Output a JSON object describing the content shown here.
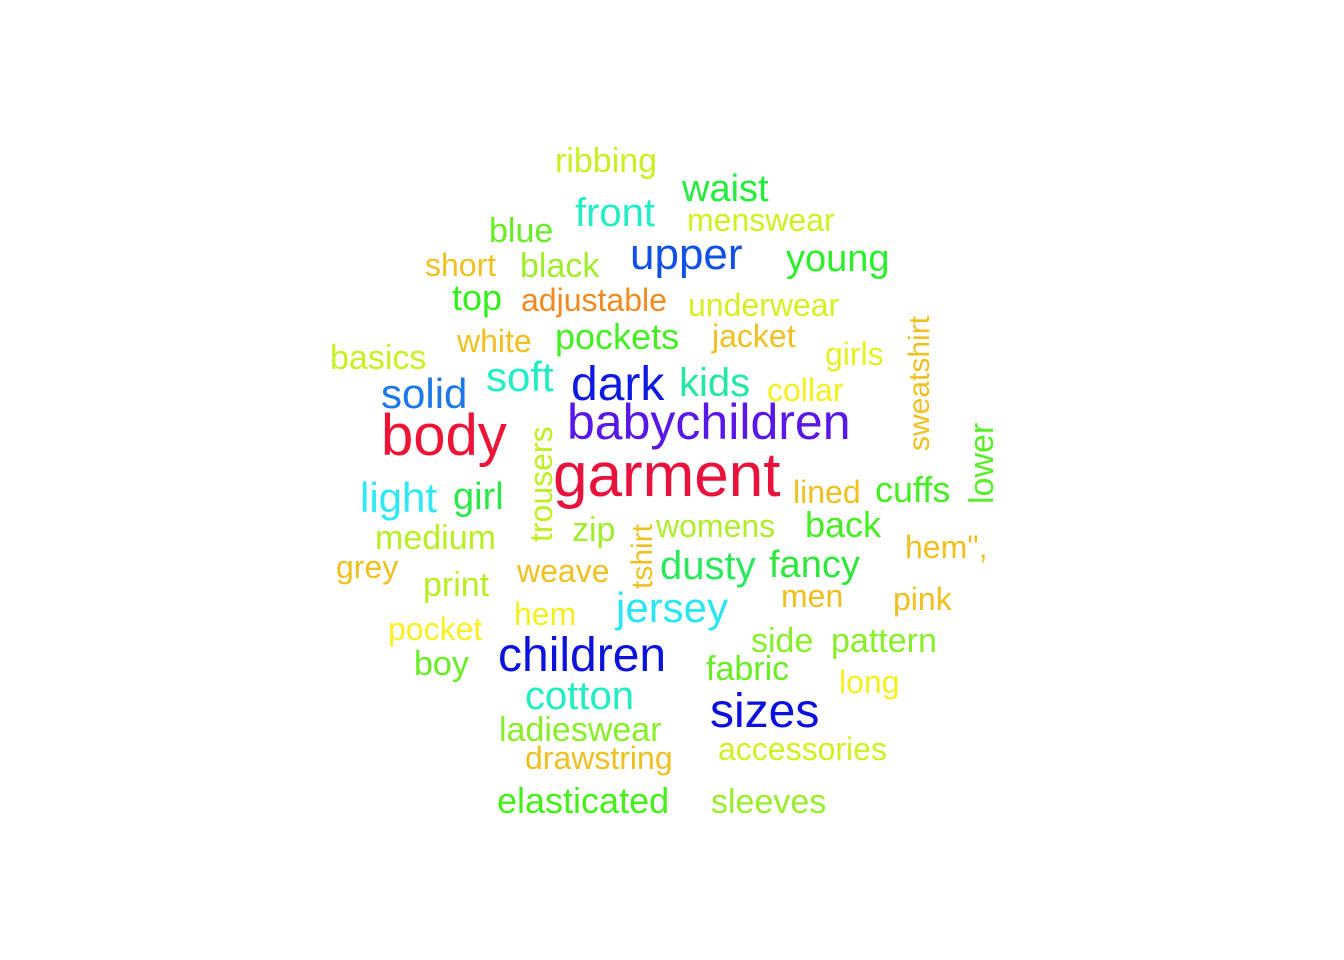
{
  "words": [
    {
      "text": "garment",
      "color": "#e8123c"
    },
    {
      "text": "body",
      "color": "#ef1336"
    },
    {
      "text": "babychildren",
      "color": "#5a18e8"
    },
    {
      "text": "children",
      "color": "#0b12dc"
    },
    {
      "text": "sizes",
      "color": "#0a0ee0"
    },
    {
      "text": "dark",
      "color": "#0e1ae0"
    },
    {
      "text": "upper",
      "color": "#1150e6"
    },
    {
      "text": "solid",
      "color": "#1a78e8"
    },
    {
      "text": "jersey",
      "color": "#2ae6f4"
    },
    {
      "text": "light",
      "color": "#2ee8f4"
    },
    {
      "text": "cotton",
      "color": "#20eec0"
    },
    {
      "text": "front",
      "color": "#22eec6"
    },
    {
      "text": "soft",
      "color": "#22eec6"
    },
    {
      "text": "kids",
      "color": "#22e8a0"
    },
    {
      "text": "dusty",
      "color": "#2ae85c"
    },
    {
      "text": "fancy",
      "color": "#2ee63c"
    },
    {
      "text": "waist",
      "color": "#22ee3c"
    },
    {
      "text": "young",
      "color": "#2af02a"
    },
    {
      "text": "pockets",
      "color": "#44ee22"
    },
    {
      "text": "girl",
      "color": "#2ae84a"
    },
    {
      "text": "back",
      "color": "#44ee22"
    },
    {
      "text": "cuffs",
      "color": "#44ee22"
    },
    {
      "text": "elasticated",
      "color": "#44f018"
    },
    {
      "text": "top",
      "color": "#30f018"
    },
    {
      "text": "lower",
      "color": "#5aee2a"
    },
    {
      "text": "blue",
      "color": "#66ee22"
    },
    {
      "text": "fabric",
      "color": "#66ee22"
    },
    {
      "text": "boy",
      "color": "#66ee22"
    },
    {
      "text": "ladieswear",
      "color": "#88ee28"
    },
    {
      "text": "side",
      "color": "#88ee28"
    },
    {
      "text": "pattern",
      "color": "#88ee28"
    },
    {
      "text": "sleeves",
      "color": "#99ee2a"
    },
    {
      "text": "black",
      "color": "#a0ee2a"
    },
    {
      "text": "zip",
      "color": "#a0ee2a"
    },
    {
      "text": "womens",
      "color": "#b0ee2a"
    },
    {
      "text": "medium",
      "color": "#b8ee22"
    },
    {
      "text": "print",
      "color": "#b8ee22"
    },
    {
      "text": "trousers",
      "color": "#c0ee22"
    },
    {
      "text": "ribbing",
      "color": "#c8f022"
    },
    {
      "text": "basics",
      "color": "#c8f022"
    },
    {
      "text": "menswear",
      "color": "#d0f022"
    },
    {
      "text": "underwear",
      "color": "#d4f022"
    },
    {
      "text": "accessories",
      "color": "#d0f022"
    },
    {
      "text": "girls",
      "color": "#e4f020"
    },
    {
      "text": "collar",
      "color": "#f4f020"
    },
    {
      "text": "hem",
      "color": "#f0f020"
    },
    {
      "text": "long",
      "color": "#f4f020"
    },
    {
      "text": "pocket",
      "color": "#f8f020"
    },
    {
      "text": "white",
      "color": "#f0c020"
    },
    {
      "text": "jacket",
      "color": "#f0c020"
    },
    {
      "text": "short",
      "color": "#f0c020"
    },
    {
      "text": "drawstring",
      "color": "#f0c020"
    },
    {
      "text": "weave",
      "color": "#f0c020"
    },
    {
      "text": "grey",
      "color": "#f0c020"
    },
    {
      "text": "lined",
      "color": "#f0c020"
    },
    {
      "text": "men",
      "color": "#f0c020"
    },
    {
      "text": "pink",
      "color": "#f0c020"
    },
    {
      "text": "hem\",",
      "color": "#f0c020"
    },
    {
      "text": "tshirt",
      "color": "#f0c020"
    },
    {
      "text": "sweatshirt",
      "color": "#f0c020"
    },
    {
      "text": "adjustable",
      "color": "#f08a20"
    }
  ]
}
